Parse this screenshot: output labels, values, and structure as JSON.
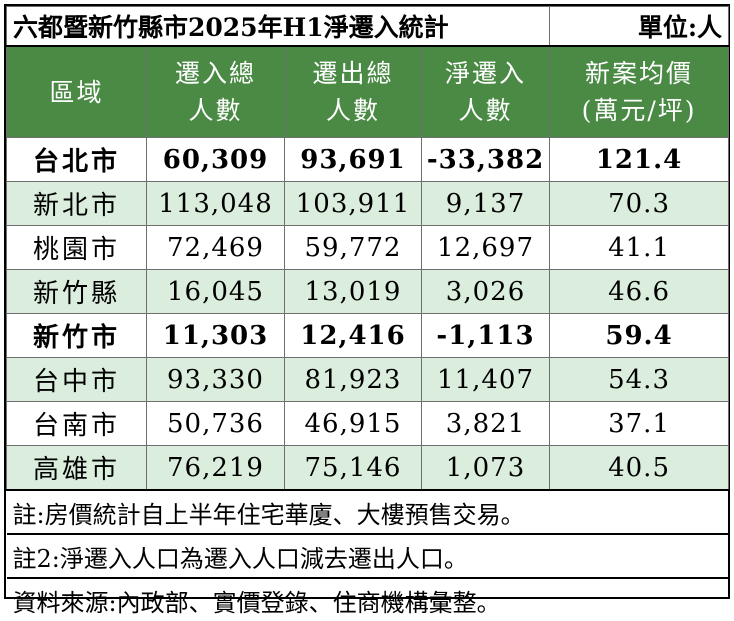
{
  "title": "六都暨新竹縣市2025年H1淨遷入統計",
  "unit": "單位:人",
  "headers": {
    "area": "區域",
    "in_1": "遷入總",
    "in_2": "人數",
    "out_1": "遷出總",
    "out_2": "人數",
    "net_1": "淨遷入",
    "net_2": "人數",
    "price_1": "新案均價",
    "price_2": "(萬元/坪)"
  },
  "rows": [
    {
      "area": "台北市",
      "in": "60,309",
      "out": "93,691",
      "net": "-33,382",
      "price": "121.4"
    },
    {
      "area": "新北市",
      "in": "113,048",
      "out": "103,911",
      "net": "9,137",
      "price": "70.3"
    },
    {
      "area": "桃園市",
      "in": "72,469",
      "out": "59,772",
      "net": "12,697",
      "price": "41.1"
    },
    {
      "area": "新竹縣",
      "in": "16,045",
      "out": "13,019",
      "net": "3,026",
      "price": "46.6"
    },
    {
      "area": "新竹市",
      "in": "11,303",
      "out": "12,416",
      "net": "-1,113",
      "price": "59.4"
    },
    {
      "area": "台中市",
      "in": "93,330",
      "out": "81,923",
      "net": "11,407",
      "price": "54.3"
    },
    {
      "area": "台南市",
      "in": "50,736",
      "out": "46,915",
      "net": "3,821",
      "price": "37.1"
    },
    {
      "area": "高雄市",
      "in": "76,219",
      "out": "75,146",
      "net": "1,073",
      "price": "40.5"
    }
  ],
  "notes": [
    "註:房價統計自上半年住宅華廈、大樓預售交易。",
    "註2:淨遷入人口為遷入人口減去遷出人口。",
    "資料來源:內政部、實價登錄、住商機構彙整。"
  ],
  "colors": {
    "header_green": "#4a8a45",
    "row_light_green": "#dbeedd"
  }
}
